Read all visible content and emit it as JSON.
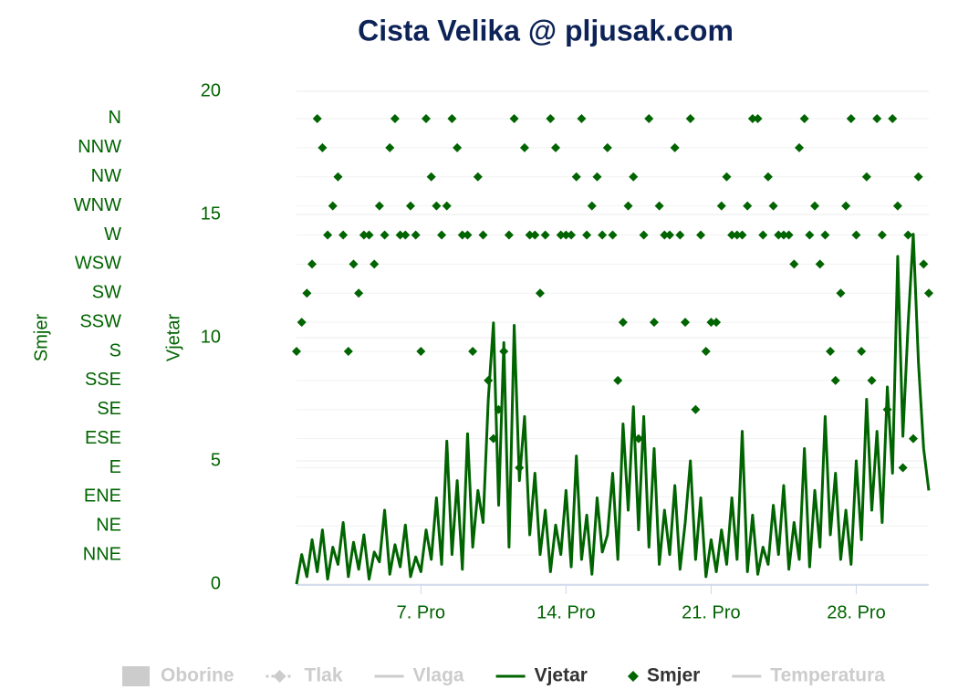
{
  "chart_data": {
    "type": "line",
    "title": "Cista Velika @ pljusak.com",
    "y_label": "Vjetar",
    "y2_label": "Smjer",
    "xlim": [
      1,
      31.5
    ],
    "xticks": [
      {
        "value": 7,
        "label": "7. Pro"
      },
      {
        "value": 14,
        "label": "14. Pro"
      },
      {
        "value": 21,
        "label": "21. Pro"
      },
      {
        "value": 28,
        "label": "28. Pro"
      }
    ],
    "ylim": [
      0,
      20
    ],
    "yticks": [
      0,
      5,
      10,
      15,
      20
    ],
    "y2lim": [
      0,
      16.94
    ],
    "y2ticks": [
      {
        "value": 1,
        "label": "NNE"
      },
      {
        "value": 2,
        "label": "NE"
      },
      {
        "value": 3,
        "label": "ENE"
      },
      {
        "value": 4,
        "label": "E"
      },
      {
        "value": 5,
        "label": "ESE"
      },
      {
        "value": 6,
        "label": "SE"
      },
      {
        "value": 7,
        "label": "SSE"
      },
      {
        "value": 8,
        "label": "S"
      },
      {
        "value": 9,
        "label": "SSW"
      },
      {
        "value": 10,
        "label": "SW"
      },
      {
        "value": 11,
        "label": "WSW"
      },
      {
        "value": 12,
        "label": "W"
      },
      {
        "value": 13,
        "label": "WNW"
      },
      {
        "value": 14,
        "label": "NW"
      },
      {
        "value": 15,
        "label": "NNW"
      },
      {
        "value": 16,
        "label": "N"
      }
    ],
    "grid": true,
    "x": [
      1,
      1.25,
      1.5,
      1.75,
      2,
      2.25,
      2.5,
      2.75,
      3,
      3.25,
      3.5,
      3.75,
      4,
      4.25,
      4.5,
      4.75,
      5,
      5.25,
      5.5,
      5.75,
      6,
      6.25,
      6.5,
      6.75,
      7,
      7.25,
      7.5,
      7.75,
      8,
      8.25,
      8.5,
      8.75,
      9,
      9.25,
      9.5,
      9.75,
      10,
      10.25,
      10.5,
      10.75,
      11,
      11.25,
      11.5,
      11.75,
      12,
      12.25,
      12.5,
      12.75,
      13,
      13.25,
      13.5,
      13.75,
      14,
      14.25,
      14.5,
      14.75,
      15,
      15.25,
      15.5,
      15.75,
      16,
      16.25,
      16.5,
      16.75,
      17,
      17.25,
      17.5,
      17.75,
      18,
      18.25,
      18.5,
      18.75,
      19,
      19.25,
      19.5,
      19.75,
      20,
      20.25,
      20.5,
      20.75,
      21,
      21.25,
      21.5,
      21.75,
      22,
      22.25,
      22.5,
      22.75,
      23,
      23.25,
      23.5,
      23.75,
      24,
      24.25,
      24.5,
      24.75,
      25,
      25.25,
      25.5,
      25.75,
      26,
      26.25,
      26.5,
      26.75,
      27,
      27.25,
      27.5,
      27.75,
      28,
      28.25,
      28.5,
      28.75,
      29,
      29.25,
      29.5,
      29.75,
      30,
      30.25,
      30.5,
      30.75,
      31,
      31.25,
      31.5
    ],
    "series": [
      {
        "name": "Vjetar",
        "color": "#006400",
        "symbol": "line",
        "values": [
          0,
          1.2,
          0.3,
          1.8,
          0.5,
          2.2,
          0.2,
          1.5,
          0.8,
          2.5,
          0.3,
          1.7,
          0.6,
          2.0,
          0.2,
          1.3,
          0.9,
          3.0,
          0.4,
          1.6,
          0.7,
          2.4,
          0.3,
          1.1,
          0.5,
          2.2,
          1.0,
          3.5,
          0.8,
          5.8,
          1.2,
          4.2,
          0.6,
          6.1,
          1.5,
          3.8,
          2.5,
          7.5,
          10.6,
          3.2,
          9.8,
          1.5,
          10.5,
          4.2,
          6.8,
          2.0,
          4.5,
          1.2,
          3.0,
          0.5,
          2.4,
          1.2,
          3.8,
          0.7,
          5.2,
          1.0,
          2.8,
          0.4,
          3.5,
          1.3,
          2.0,
          4.5,
          1.0,
          6.5,
          3.0,
          7.2,
          2.2,
          6.8,
          1.5,
          5.5,
          0.8,
          3.0,
          1.2,
          4.0,
          0.6,
          2.5,
          5.0,
          1.0,
          3.5,
          0.3,
          1.8,
          0.5,
          2.2,
          0.8,
          3.5,
          1.0,
          6.2,
          0.5,
          2.8,
          0.4,
          1.5,
          0.8,
          3.2,
          1.2,
          4.0,
          0.6,
          2.5,
          1.0,
          5.5,
          0.7,
          3.8,
          1.5,
          6.8,
          2.0,
          4.5,
          1.0,
          3.0,
          0.8,
          5.0,
          1.8,
          7.5,
          3.0,
          6.2,
          2.5,
          8.0,
          4.5,
          13.3,
          6.0,
          10.5,
          14.2,
          9.0,
          5.5,
          3.8
        ]
      },
      {
        "name": "Smjer",
        "color": "#006400",
        "symbol": "diamond",
        "axis": "y2",
        "values": [
          8,
          9,
          10,
          11,
          16,
          15,
          12,
          13,
          14,
          12,
          8,
          11,
          10,
          12,
          12,
          11,
          13,
          12,
          15,
          16,
          12,
          12,
          13,
          12,
          8,
          16,
          14,
          13,
          12,
          13,
          16,
          15,
          12,
          12,
          8,
          14,
          12,
          7,
          5,
          6,
          8,
          12,
          16,
          4,
          15,
          12,
          12,
          10,
          12,
          16,
          15,
          12,
          12,
          12,
          14,
          16,
          12,
          13,
          14,
          12,
          15,
          12,
          7,
          9,
          13,
          14,
          5,
          12,
          16,
          9,
          13,
          12,
          12,
          15,
          12,
          9,
          16,
          6,
          12,
          8,
          9,
          9,
          13,
          14,
          12,
          12,
          12,
          13,
          16,
          16,
          12,
          14,
          13,
          12,
          12,
          12,
          11,
          15,
          16,
          12,
          13,
          11,
          12,
          8,
          7,
          10,
          13,
          16,
          12,
          8,
          14,
          7,
          16,
          12,
          6,
          16,
          13,
          4,
          12,
          5,
          14,
          11,
          10
        ]
      }
    ],
    "legend": [
      {
        "name": "Oborine",
        "symbol": "rect",
        "active": false
      },
      {
        "name": "Tlak",
        "symbol": "dashdiamond",
        "active": false
      },
      {
        "name": "Vlaga",
        "symbol": "line",
        "active": false
      },
      {
        "name": "Vjetar",
        "symbol": "line",
        "active": true,
        "color": "#006400"
      },
      {
        "name": "Smjer",
        "symbol": "diamond",
        "active": true,
        "color": "#006400"
      },
      {
        "name": "Temperatura",
        "symbol": "line",
        "active": false
      }
    ]
  }
}
